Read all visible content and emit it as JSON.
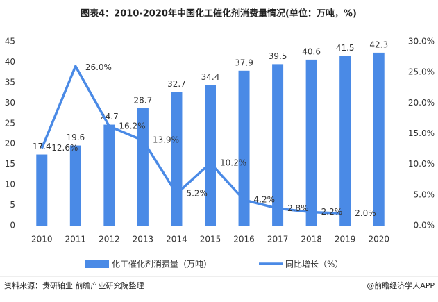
{
  "chart_data": {
    "type": "bar-line",
    "title": "图表4：2010-2020年中国化工催化剂消费量情况(单位：万吨，%)",
    "categories": [
      "2010",
      "2011",
      "2012",
      "2013",
      "2014",
      "2015",
      "2016",
      "2017",
      "2018",
      "2019",
      "2020"
    ],
    "series": [
      {
        "name": "化工催化剂消费量（万吨）",
        "type": "bar",
        "color": "#4a8ae6",
        "values": [
          17.4,
          19.6,
          24.7,
          28.7,
          32.7,
          34.4,
          37.9,
          39.5,
          40.6,
          41.5,
          42.3
        ]
      },
      {
        "name": "同比增长（%）",
        "type": "line",
        "axis": "y2",
        "color": "#4a8ae6",
        "values": [
          12.6,
          26.0,
          16.2,
          13.9,
          5.2,
          10.2,
          4.2,
          2.8,
          2.2,
          2.0,
          null
        ],
        "value_labels": [
          "12.6%",
          "26.0%",
          "16.2%",
          "13.9%",
          "5.2%",
          "10.2%",
          "4.2%",
          "2.8%",
          "2.2%",
          "2.0%",
          null
        ]
      }
    ],
    "ylim": [
      0,
      45
    ],
    "yticks": [
      0,
      5,
      10,
      15,
      20,
      25,
      30,
      35,
      40,
      45
    ],
    "y2lim": [
      0,
      30
    ],
    "y2ticks": [
      {
        "value": 0,
        "label": "0.0%"
      },
      {
        "value": 5,
        "label": "5.0%"
      },
      {
        "value": 10,
        "label": "10.0%"
      },
      {
        "value": 15,
        "label": "15.0%"
      },
      {
        "value": 20,
        "label": "20.0%"
      },
      {
        "value": 25,
        "label": "25.0%"
      },
      {
        "value": 30,
        "label": "30.0%"
      }
    ],
    "grid": false,
    "legend": "bottom",
    "source": "资料来源：贵研铂业 前瞻产业研究院整理",
    "credit": "@前瞻经济学人APP"
  }
}
